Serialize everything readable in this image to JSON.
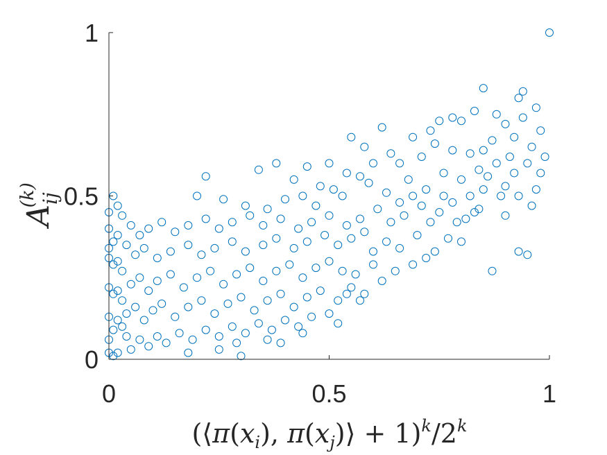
{
  "chart_data": {
    "type": "scatter",
    "title": "",
    "xlabel": "(⟨π(x_i), π(x_j)⟩ + 1)^k / 2^k",
    "ylabel": "A_ij^(k)",
    "xlim": [
      0,
      1
    ],
    "ylim": [
      0,
      1
    ],
    "xticks": [
      0,
      0.5,
      1
    ],
    "yticks": [
      0,
      0.5,
      1
    ],
    "xtick_labels": [
      "0",
      "0.5",
      "1"
    ],
    "ytick_labels": [
      "0",
      "0.5",
      "1"
    ],
    "grid": false,
    "marker": "open-circle",
    "marker_color": "#0072BD",
    "series": [
      {
        "points": [
          [
            1.0,
            1.0
          ],
          [
            0.85,
            0.83
          ],
          [
            0.94,
            0.82
          ],
          [
            0.93,
            0.8
          ],
          [
            0.97,
            0.77
          ],
          [
            0.83,
            0.76
          ],
          [
            0.78,
            0.74
          ],
          [
            0.94,
            0.74
          ],
          [
            0.88,
            0.75
          ],
          [
            0.8,
            0.73
          ],
          [
            0.9,
            0.72
          ],
          [
            0.75,
            0.73
          ],
          [
            0.62,
            0.71
          ],
          [
            0.73,
            0.7
          ],
          [
            0.69,
            0.68
          ],
          [
            0.55,
            0.68
          ],
          [
            0.98,
            0.7
          ],
          [
            0.92,
            0.68
          ],
          [
            0.87,
            0.67
          ],
          [
            0.85,
            0.64
          ],
          [
            0.82,
            0.63
          ],
          [
            0.78,
            0.64
          ],
          [
            0.74,
            0.66
          ],
          [
            0.71,
            0.62
          ],
          [
            0.64,
            0.63
          ],
          [
            0.58,
            0.65
          ],
          [
            0.66,
            0.6
          ],
          [
            0.6,
            0.6
          ],
          [
            0.57,
            0.56
          ],
          [
            0.54,
            0.57
          ],
          [
            0.5,
            0.6
          ],
          [
            0.45,
            0.59
          ],
          [
            0.38,
            0.6
          ],
          [
            0.34,
            0.58
          ],
          [
            0.22,
            0.56
          ],
          [
            0.42,
            0.55
          ],
          [
            0.48,
            0.53
          ],
          [
            0.51,
            0.52
          ],
          [
            0.44,
            0.5
          ],
          [
            0.4,
            0.49
          ],
          [
            0.2,
            0.5
          ],
          [
            0.26,
            0.49
          ],
          [
            0.31,
            0.47
          ],
          [
            0.36,
            0.46
          ],
          [
            0.47,
            0.47
          ],
          [
            0.53,
            0.5
          ],
          [
            0.59,
            0.54
          ],
          [
            0.63,
            0.51
          ],
          [
            0.68,
            0.55
          ],
          [
            0.72,
            0.52
          ],
          [
            0.76,
            0.57
          ],
          [
            0.8,
            0.55
          ],
          [
            0.84,
            0.58
          ],
          [
            0.88,
            0.6
          ],
          [
            0.91,
            0.62
          ],
          [
            0.95,
            0.6
          ],
          [
            0.97,
            0.52
          ],
          [
            0.93,
            0.5
          ],
          [
            0.9,
            0.53
          ],
          [
            0.86,
            0.56
          ],
          [
            0.82,
            0.5
          ],
          [
            0.78,
            0.48
          ],
          [
            0.75,
            0.45
          ],
          [
            0.71,
            0.47
          ],
          [
            0.67,
            0.44
          ],
          [
            0.64,
            0.42
          ],
          [
            0.61,
            0.46
          ],
          [
            0.57,
            0.43
          ],
          [
            0.54,
            0.41
          ],
          [
            0.5,
            0.44
          ],
          [
            0.46,
            0.42
          ],
          [
            0.43,
            0.4
          ],
          [
            0.39,
            0.43
          ],
          [
            0.35,
            0.41
          ],
          [
            0.32,
            0.44
          ],
          [
            0.28,
            0.42
          ],
          [
            0.25,
            0.4
          ],
          [
            0.22,
            0.43
          ],
          [
            0.18,
            0.41
          ],
          [
            0.15,
            0.39
          ],
          [
            0.12,
            0.42
          ],
          [
            0.09,
            0.4
          ],
          [
            0.07,
            0.38
          ],
          [
            0.05,
            0.41
          ],
          [
            0.03,
            0.44
          ],
          [
            0.01,
            0.5
          ],
          [
            0.02,
            0.47
          ],
          [
            0.0,
            0.45
          ],
          [
            0.87,
            0.27
          ],
          [
            0.93,
            0.33
          ],
          [
            0.95,
            0.32
          ],
          [
            0.8,
            0.36
          ],
          [
            0.77,
            0.37
          ],
          [
            0.7,
            0.38
          ],
          [
            0.66,
            0.34
          ],
          [
            0.72,
            0.31
          ],
          [
            0.6,
            0.33
          ],
          [
            0.63,
            0.36
          ],
          [
            0.58,
            0.39
          ],
          [
            0.55,
            0.37
          ],
          [
            0.52,
            0.35
          ],
          [
            0.49,
            0.38
          ],
          [
            0.45,
            0.36
          ],
          [
            0.42,
            0.34
          ],
          [
            0.38,
            0.37
          ],
          [
            0.35,
            0.35
          ],
          [
            0.31,
            0.33
          ],
          [
            0.28,
            0.36
          ],
          [
            0.24,
            0.34
          ],
          [
            0.21,
            0.32
          ],
          [
            0.18,
            0.35
          ],
          [
            0.14,
            0.33
          ],
          [
            0.11,
            0.31
          ],
          [
            0.08,
            0.34
          ],
          [
            0.06,
            0.32
          ],
          [
            0.04,
            0.35
          ],
          [
            0.02,
            0.38
          ],
          [
            0.01,
            0.36
          ],
          [
            0.0,
            0.4
          ],
          [
            0.0,
            0.34
          ],
          [
            0.6,
            0.29
          ],
          [
            0.56,
            0.26
          ],
          [
            0.53,
            0.27
          ],
          [
            0.5,
            0.3
          ],
          [
            0.47,
            0.28
          ],
          [
            0.44,
            0.25
          ],
          [
            0.41,
            0.29
          ],
          [
            0.38,
            0.27
          ],
          [
            0.35,
            0.24
          ],
          [
            0.32,
            0.28
          ],
          [
            0.29,
            0.26
          ],
          [
            0.26,
            0.23
          ],
          [
            0.23,
            0.27
          ],
          [
            0.2,
            0.25
          ],
          [
            0.17,
            0.22
          ],
          [
            0.14,
            0.26
          ],
          [
            0.11,
            0.24
          ],
          [
            0.09,
            0.21
          ],
          [
            0.07,
            0.25
          ],
          [
            0.05,
            0.23
          ],
          [
            0.03,
            0.27
          ],
          [
            0.02,
            0.3
          ],
          [
            0.01,
            0.29
          ],
          [
            0.0,
            0.31
          ],
          [
            0.55,
            0.22
          ],
          [
            0.58,
            0.2
          ],
          [
            0.52,
            0.18
          ],
          [
            0.48,
            0.21
          ],
          [
            0.45,
            0.19
          ],
          [
            0.42,
            0.16
          ],
          [
            0.39,
            0.2
          ],
          [
            0.36,
            0.18
          ],
          [
            0.33,
            0.15
          ],
          [
            0.3,
            0.19
          ],
          [
            0.27,
            0.17
          ],
          [
            0.24,
            0.14
          ],
          [
            0.21,
            0.18
          ],
          [
            0.18,
            0.16
          ],
          [
            0.15,
            0.13
          ],
          [
            0.12,
            0.17
          ],
          [
            0.1,
            0.15
          ],
          [
            0.08,
            0.12
          ],
          [
            0.06,
            0.16
          ],
          [
            0.04,
            0.14
          ],
          [
            0.03,
            0.18
          ],
          [
            0.02,
            0.21
          ],
          [
            0.01,
            0.2
          ],
          [
            0.0,
            0.22
          ],
          [
            0.46,
            0.13
          ],
          [
            0.43,
            0.1
          ],
          [
            0.4,
            0.12
          ],
          [
            0.37,
            0.09
          ],
          [
            0.34,
            0.11
          ],
          [
            0.31,
            0.08
          ],
          [
            0.28,
            0.1
          ],
          [
            0.25,
            0.07
          ],
          [
            0.22,
            0.09
          ],
          [
            0.19,
            0.06
          ],
          [
            0.16,
            0.08
          ],
          [
            0.13,
            0.05
          ],
          [
            0.11,
            0.07
          ],
          [
            0.09,
            0.04
          ],
          [
            0.07,
            0.06
          ],
          [
            0.05,
            0.03
          ],
          [
            0.04,
            0.07
          ],
          [
            0.03,
            0.1
          ],
          [
            0.02,
            0.12
          ],
          [
            0.01,
            0.09
          ],
          [
            0.0,
            0.13
          ],
          [
            0.0,
            0.06
          ],
          [
            0.0,
            0.02
          ],
          [
            0.01,
            0.01
          ],
          [
            0.39,
            0.05
          ],
          [
            0.44,
            0.08
          ],
          [
            0.36,
            0.06
          ],
          [
            0.3,
            0.01
          ],
          [
            0.18,
            0.02
          ],
          [
            0.25,
            0.03
          ],
          [
            0.29,
            0.05
          ],
          [
            0.02,
            0.02
          ],
          [
            0.5,
            0.14
          ],
          [
            0.52,
            0.11
          ],
          [
            0.54,
            0.2
          ],
          [
            0.57,
            0.18
          ],
          [
            0.62,
            0.24
          ],
          [
            0.65,
            0.27
          ],
          [
            0.69,
            0.29
          ],
          [
            0.74,
            0.33
          ],
          [
            0.66,
            0.48
          ],
          [
            0.69,
            0.5
          ],
          [
            0.73,
            0.42
          ],
          [
            0.76,
            0.5
          ],
          [
            0.81,
            0.43
          ],
          [
            0.84,
            0.46
          ],
          [
            0.9,
            0.44
          ],
          [
            0.96,
            0.47
          ],
          [
            0.98,
            0.57
          ],
          [
            0.99,
            0.62
          ],
          [
            0.96,
            0.65
          ],
          [
            0.92,
            0.57
          ],
          [
            0.89,
            0.5
          ],
          [
            0.85,
            0.52
          ],
          [
            0.83,
            0.45
          ],
          [
            0.79,
            0.42
          ]
        ]
      }
    ]
  }
}
